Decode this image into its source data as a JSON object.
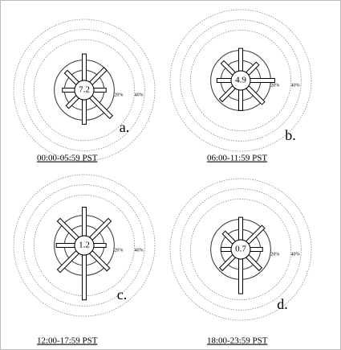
{
  "chart_data": [
    {
      "type": "windrose",
      "title": "a.",
      "caption": "00:00-05:59 PST",
      "calm": 7.2,
      "values": [
        26,
        20,
        12,
        28,
        24,
        14,
        12,
        16
      ],
      "color": "#ffffff",
      "rlim": [
        0,
        60
      ],
      "rticks": [
        {
          "value": 10,
          "label": null
        },
        {
          "value": 20,
          "label": "20%"
        },
        {
          "value": 40,
          "label": "40%"
        },
        {
          "value": 50,
          "label": null
        },
        {
          "value": 60,
          "label": null
        }
      ]
    },
    {
      "type": "windrose",
      "title": "b.",
      "caption": "06:00-11:59 PST",
      "calm": 4.9,
      "values": [
        22,
        14,
        24,
        22,
        20,
        18,
        14,
        16
      ],
      "color": "#ffffff",
      "rlim": [
        0,
        60
      ],
      "rticks": [
        {
          "value": 10,
          "label": null
        },
        {
          "value": 20,
          "label": "20%"
        },
        {
          "value": 40,
          "label": "40%"
        },
        {
          "value": 50,
          "label": null
        },
        {
          "value": 60,
          "label": null
        }
      ]
    },
    {
      "type": "windrose",
      "title": "c.",
      "caption": "12:00-17:59 PST",
      "calm": 1.2,
      "values": [
        28,
        26,
        12,
        24,
        44,
        26,
        18,
        26
      ],
      "color": "#ffffff",
      "rlim": [
        0,
        60
      ],
      "rticks": [
        {
          "value": 10,
          "label": null
        },
        {
          "value": 20,
          "label": "20%"
        },
        {
          "value": 40,
          "label": "40%"
        },
        {
          "value": 50,
          "label": null
        },
        {
          "value": 60,
          "label": null
        }
      ]
    },
    {
      "type": "windrose",
      "title": "d.",
      "caption": "18:00-23:59 PST",
      "calm": 0.7,
      "values": [
        22,
        22,
        12,
        18,
        34,
        18,
        10,
        14
      ],
      "color": "#ffffff",
      "rlim": [
        0,
        60
      ],
      "rticks": [
        {
          "value": 10,
          "label": null
        },
        {
          "value": 20,
          "label": "20%"
        },
        {
          "value": 40,
          "label": "40%"
        },
        {
          "value": 50,
          "label": null
        },
        {
          "value": 60,
          "label": null
        }
      ]
    }
  ]
}
